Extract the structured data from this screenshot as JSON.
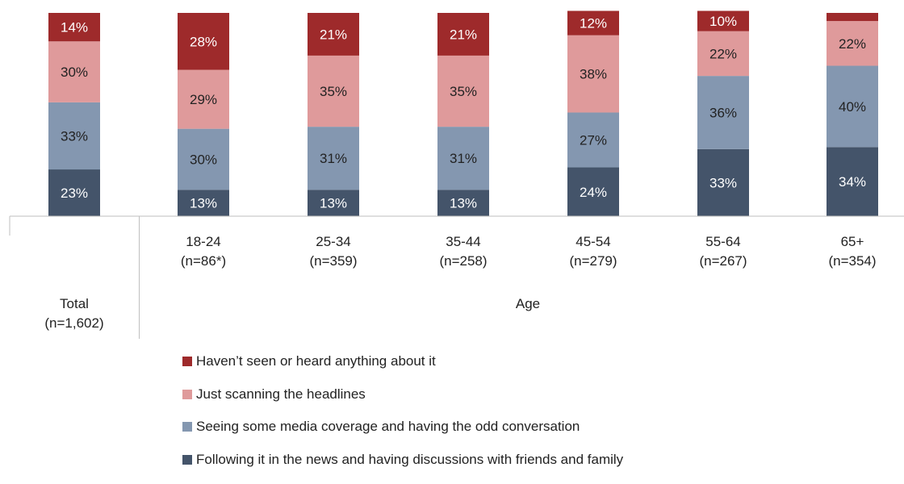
{
  "chart_data": {
    "type": "bar",
    "stacked": true,
    "categories": [
      {
        "line1": "Total",
        "line2": "(n=1,602)"
      },
      {
        "line1": "18-24",
        "line2": "(n=86*)"
      },
      {
        "line1": "25-34",
        "line2": "(n=359)"
      },
      {
        "line1": "35-44",
        "line2": "(n=258)"
      },
      {
        "line1": "45-54",
        "line2": "(n=279)"
      },
      {
        "line1": "55-64",
        "line2": "(n=267)"
      },
      {
        "line1": "65+",
        "line2": "(n=354)"
      }
    ],
    "group_label": "Age",
    "series": [
      {
        "name": "Following it in the news and having discussions with friends and family",
        "color": "#44546a",
        "values": [
          23,
          13,
          13,
          13,
          24,
          33,
          34
        ],
        "labels": [
          "23%",
          "13%",
          "13%",
          "13%",
          "24%",
          "33%",
          "34%"
        ]
      },
      {
        "name": "Seeing some media coverage and having the odd conversation",
        "color": "#8497b0",
        "values": [
          33,
          30,
          31,
          31,
          27,
          36,
          40
        ],
        "labels": [
          "33%",
          "30%",
          "31%",
          "31%",
          "27%",
          "36%",
          "40%"
        ]
      },
      {
        "name": "Just scanning the headlines",
        "color": "#df9a9b",
        "values": [
          30,
          29,
          35,
          35,
          38,
          22,
          22
        ],
        "labels": [
          "30%",
          "29%",
          "35%",
          "35%",
          "38%",
          "22%",
          "22%"
        ]
      },
      {
        "name": "Haven’t seen or heard anything about it",
        "color": "#9e2a2b",
        "values": [
          14,
          28,
          21,
          21,
          12,
          10,
          4
        ],
        "labels": [
          "14%",
          "28%",
          "21%",
          "21%",
          "12%",
          "10%",
          ""
        ]
      }
    ],
    "legend": {
      "placement": "bottom",
      "order": [
        3,
        2,
        1,
        0
      ]
    },
    "ymax_visible": 101
  }
}
